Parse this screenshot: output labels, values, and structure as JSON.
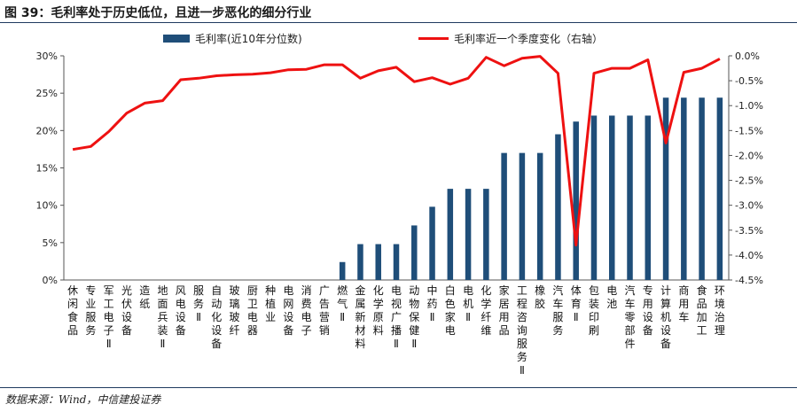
{
  "title": "图 39：毛利率处于历史低位，且进一步恶化的细分行业",
  "source": "数据来源：Wind，中信建投证券",
  "chart_data": {
    "type": "bar+line",
    "categories": [
      "休闲食品",
      "专业服务",
      "军工电子Ⅱ",
      "光伏设备",
      "造纸",
      "地面兵装Ⅱ",
      "风电设备",
      "服务Ⅱ",
      "自动化设备",
      "玻璃玻纤",
      "厨卫电器",
      "种植业",
      "电网设备",
      "消费电子",
      "广告营销",
      "燃气Ⅱ",
      "金属新材料",
      "化学原料",
      "电视广播Ⅱ",
      "动物保健Ⅱ",
      "中药Ⅱ",
      "白色家电",
      "电机Ⅱ",
      "化学纤维",
      "家居用品",
      "工程咨询服务Ⅱ",
      "橡胶",
      "汽车服务",
      "体育Ⅱ",
      "包装印刷",
      "电池",
      "汽车零部件",
      "专用设备",
      "计算机设备",
      "商用车",
      "食品加工",
      "环境治理"
    ],
    "series": [
      {
        "name": "毛利率(近10年分位数)",
        "type": "bar",
        "axis": "left",
        "color": "#1f4e79",
        "values": [
          0,
          0,
          0,
          0,
          0,
          0,
          0,
          0,
          0,
          0,
          0,
          0,
          0,
          0,
          0,
          2.4,
          4.8,
          4.8,
          4.8,
          7.3,
          9.8,
          12.2,
          12.2,
          12.2,
          17.0,
          17.0,
          17.0,
          19.5,
          21.2,
          22.0,
          22.0,
          22.0,
          22.0,
          24.4,
          24.4,
          24.4,
          24.4
        ]
      },
      {
        "name": "毛利率近一个季度变化（右轴）",
        "type": "line",
        "axis": "right",
        "color": "#ee1111",
        "values": [
          -1.88,
          -1.82,
          -1.52,
          -1.15,
          -0.95,
          -0.9,
          -0.48,
          -0.45,
          -0.4,
          -0.38,
          -0.37,
          -0.34,
          -0.28,
          -0.27,
          -0.18,
          -0.18,
          -0.45,
          -0.3,
          -0.23,
          -0.52,
          -0.44,
          -0.57,
          -0.45,
          -0.03,
          -0.2,
          -0.05,
          -0.01,
          -0.35,
          -3.8,
          -0.35,
          -0.25,
          -0.25,
          -0.08,
          -1.75,
          -0.33,
          -0.25,
          -0.06
        ]
      }
    ],
    "y_left": {
      "min": 0,
      "max": 30,
      "ticks": [
        "0%",
        "5%",
        "10%",
        "15%",
        "20%",
        "25%",
        "30%"
      ]
    },
    "y_right": {
      "min": -4.5,
      "max": 0,
      "ticks": [
        "-4.5%",
        "-4.0%",
        "-3.5%",
        "-3.0%",
        "-2.5%",
        "-2.0%",
        "-1.5%",
        "-1.0%",
        "-0.5%",
        "0.0%"
      ]
    },
    "legend_position": "top"
  }
}
